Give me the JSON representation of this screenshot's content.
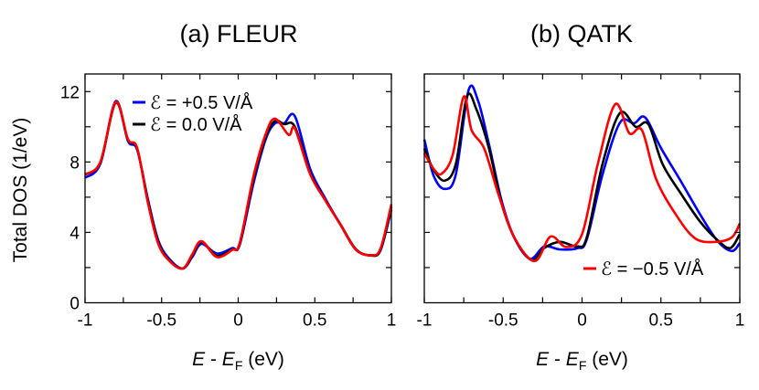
{
  "chart_data": [
    {
      "type": "line",
      "title": "(a) FLEUR",
      "xlabel": "E - E_F (eV)",
      "xlabel_parts": {
        "main": "E",
        "sep": " - ",
        "sym": "E",
        "sub": "F",
        "unit": " (eV)"
      },
      "ylabel": "Total DOS (1/eV)",
      "xlim": [
        -1,
        1
      ],
      "ylim": [
        0,
        13
      ],
      "xticks": [
        "-1",
        "-0.5",
        "0",
        "0.5",
        "1"
      ],
      "yticks": [
        "0",
        "4",
        "8",
        "12"
      ],
      "grid": false,
      "legend": [
        {
          "label": "ℰ = +0.5 V/Å",
          "color": "#0000ff"
        },
        {
          "label": "ℰ = 0.0 V/Å",
          "color": "#000000"
        }
      ],
      "legend_position": "top-left",
      "series": [
        {
          "color": "#0000ff",
          "x": [
            -1,
            -0.9,
            -0.8,
            -0.72,
            -0.66,
            -0.59,
            -0.52,
            -0.44,
            -0.36,
            -0.3,
            -0.24,
            -0.14,
            -0.04,
            0.01,
            0.1,
            0.18,
            0.24,
            0.3,
            0.37,
            0.47,
            0.57,
            0.67,
            0.77,
            0.87,
            0.93,
            1.0
          ],
          "y": [
            7.1,
            7.9,
            11.45,
            9.2,
            8.7,
            5.9,
            3.5,
            2.4,
            1.95,
            2.6,
            3.35,
            2.8,
            3.1,
            3.3,
            6.8,
            9.3,
            10.2,
            10.2,
            10.6,
            7.6,
            5.9,
            4.4,
            3.0,
            2.7,
            3.0,
            5.3
          ]
        },
        {
          "color": "#000000",
          "x": [
            -1,
            -0.9,
            -0.8,
            -0.72,
            -0.66,
            -0.59,
            -0.52,
            -0.44,
            -0.36,
            -0.3,
            -0.24,
            -0.14,
            -0.04,
            0.01,
            0.1,
            0.18,
            0.24,
            0.3,
            0.37,
            0.47,
            0.57,
            0.67,
            0.77,
            0.87,
            0.93,
            1.0
          ],
          "y": [
            7.28,
            7.98,
            11.36,
            9.28,
            8.76,
            5.8,
            3.38,
            2.33,
            1.95,
            2.68,
            3.46,
            2.68,
            3.03,
            3.38,
            7.02,
            9.45,
            10.32,
            10.15,
            10.0,
            7.37,
            5.81,
            4.42,
            3.03,
            2.68,
            3.03,
            5.46
          ]
        },
        {
          "color": "#ff0000",
          "x": [
            -1,
            -0.9,
            -0.8,
            -0.72,
            -0.66,
            -0.59,
            -0.52,
            -0.44,
            -0.36,
            -0.3,
            -0.24,
            -0.14,
            -0.04,
            0.01,
            0.1,
            0.18,
            0.24,
            0.33,
            0.37,
            0.47,
            0.57,
            0.67,
            0.77,
            0.87,
            0.93,
            1.0
          ],
          "y": [
            7.3,
            8.0,
            11.4,
            9.3,
            8.8,
            5.7,
            3.3,
            2.3,
            1.95,
            2.75,
            3.5,
            2.6,
            3.0,
            3.4,
            7.2,
            9.6,
            10.46,
            9.54,
            9.9,
            7.3,
            5.8,
            4.4,
            3.0,
            2.7,
            3.1,
            5.6
          ]
        }
      ]
    },
    {
      "type": "line",
      "title": "(b) QATK",
      "xlabel": "E - E_F (eV)",
      "xlabel_parts": {
        "main": "E",
        "sep": " - ",
        "sym": "E",
        "sub": "F",
        "unit": " (eV)"
      },
      "xlim": [
        -1,
        1
      ],
      "ylim": [
        0,
        13
      ],
      "xticks": [
        "-1",
        "-0.5",
        "0",
        "0.5",
        "1"
      ],
      "grid": false,
      "legend": [
        {
          "label": "ℰ = −0.5 V/Å",
          "color": "#ff0000"
        }
      ],
      "legend_position": "bottom-right",
      "series": [
        {
          "color": "#0000ff",
          "x": [
            -1,
            -0.94,
            -0.87,
            -0.8,
            -0.72,
            -0.66,
            -0.59,
            -0.51,
            -0.43,
            -0.33,
            -0.24,
            -0.14,
            -0.03,
            0.03,
            0.13,
            0.24,
            0.33,
            0.4,
            0.5,
            0.63,
            0.75,
            0.86,
            0.95,
            1.0
          ],
          "y": [
            9.28,
            7.2,
            6.47,
            7.3,
            12.06,
            11.5,
            9.0,
            5.8,
            3.7,
            2.5,
            3.2,
            3.03,
            3.1,
            3.6,
            7.3,
            10.23,
            10.2,
            10.53,
            8.8,
            6.85,
            5.0,
            3.5,
            2.94,
            3.4
          ]
        },
        {
          "color": "#000000",
          "x": [
            -1,
            -0.94,
            -0.87,
            -0.8,
            -0.73,
            -0.67,
            -0.59,
            -0.51,
            -0.43,
            -0.32,
            -0.24,
            -0.14,
            -0.03,
            0.03,
            0.13,
            0.24,
            0.34,
            0.42,
            0.51,
            0.63,
            0.75,
            0.86,
            0.94,
            1.0
          ],
          "y": [
            8.76,
            7.54,
            6.94,
            7.89,
            11.71,
            11.0,
            8.76,
            5.64,
            3.72,
            2.42,
            3.11,
            3.46,
            3.2,
            3.72,
            7.89,
            10.78,
            10.0,
            10.15,
            7.89,
            6.16,
            4.59,
            3.55,
            3.11,
            3.9
          ]
        },
        {
          "color": "#ff0000",
          "x": [
            -1,
            -0.94,
            -0.89,
            -0.82,
            -0.75,
            -0.7,
            -0.62,
            -0.53,
            -0.43,
            -0.3,
            -0.2,
            -0.1,
            0.0,
            0.1,
            0.21,
            0.3,
            0.38,
            0.47,
            0.6,
            0.72,
            0.85,
            0.95,
            1.0
          ],
          "y": [
            8.5,
            7.6,
            7.33,
            8.41,
            11.71,
            9.8,
            8.76,
            6.16,
            3.72,
            2.37,
            3.76,
            3.17,
            3.9,
            7.89,
            11.28,
            9.63,
            9.8,
            7.02,
            4.94,
            3.64,
            3.46,
            3.72,
            4.5
          ]
        }
      ]
    }
  ]
}
